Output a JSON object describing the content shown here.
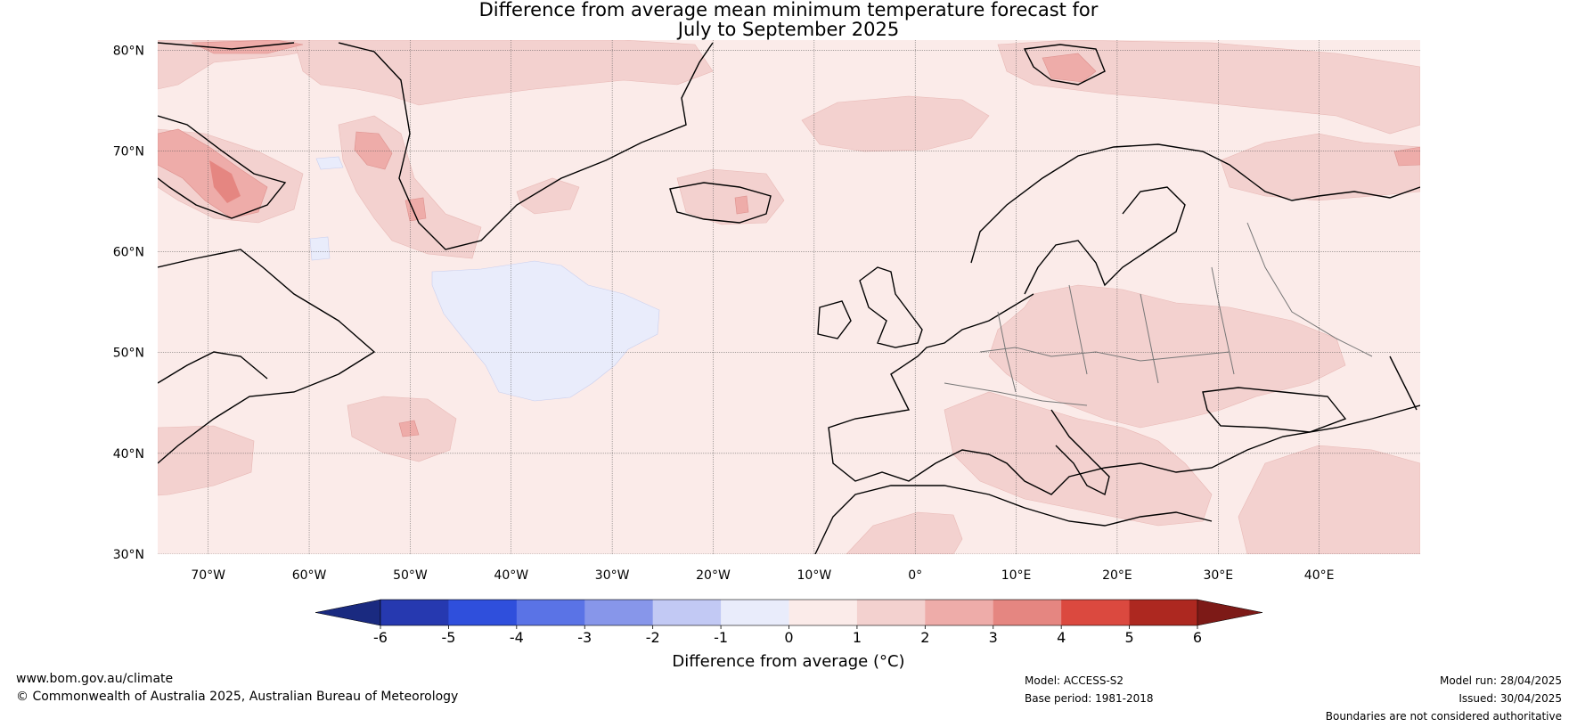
{
  "title": {
    "line1": "Difference from average mean minimum temperature forecast for",
    "line2": "July to September 2025"
  },
  "map": {
    "latitude_labels": [
      "80°N",
      "70°N",
      "60°N",
      "50°N",
      "40°N",
      "30°N"
    ],
    "longitude_labels": [
      "70°W",
      "60°W",
      "50°W",
      "40°W",
      "30°W",
      "20°W",
      "10°W",
      "0°",
      "10°E",
      "20°E",
      "30°E",
      "40°E"
    ],
    "extent": {
      "lon_min": -75,
      "lon_max": 50,
      "lat_min": 30,
      "lat_max": 81
    }
  },
  "colorbar": {
    "label": "Difference from average (°C)",
    "ticks": [
      "-6",
      "-5",
      "-4",
      "-3",
      "-2",
      "-1",
      "0",
      "1",
      "2",
      "3",
      "4",
      "5",
      "6"
    ],
    "colors": {
      "below_-6": "#1a2a80",
      "-6_-5": "#2639b0",
      "-5_-4": "#2f4fdc",
      "-4_-3": "#5a73e6",
      "-3_-2": "#8796ea",
      "-2_-1": "#c2c9f4",
      "-1_0": "#e9ecfb",
      "0_1": "#fbebe9",
      "1_2": "#f3d1cf",
      "2_3": "#eeaca9",
      "3_4": "#e58681",
      "4_5": "#db493f",
      "5_6": "#ad2820",
      "above_6": "#7d1a17"
    }
  },
  "footer": {
    "website": "www.bom.gov.au/climate",
    "copyright": "© Commonwealth of Australia 2025, Australian Bureau of Meteorology",
    "model": "Model: ACCESS-S2",
    "base_period": "Base period: 1981-2018",
    "model_run": "Model run: 28/04/2025",
    "issued": "Issued: 30/04/2025",
    "disclaimer": "Boundaries are not considered authoritative"
  }
}
